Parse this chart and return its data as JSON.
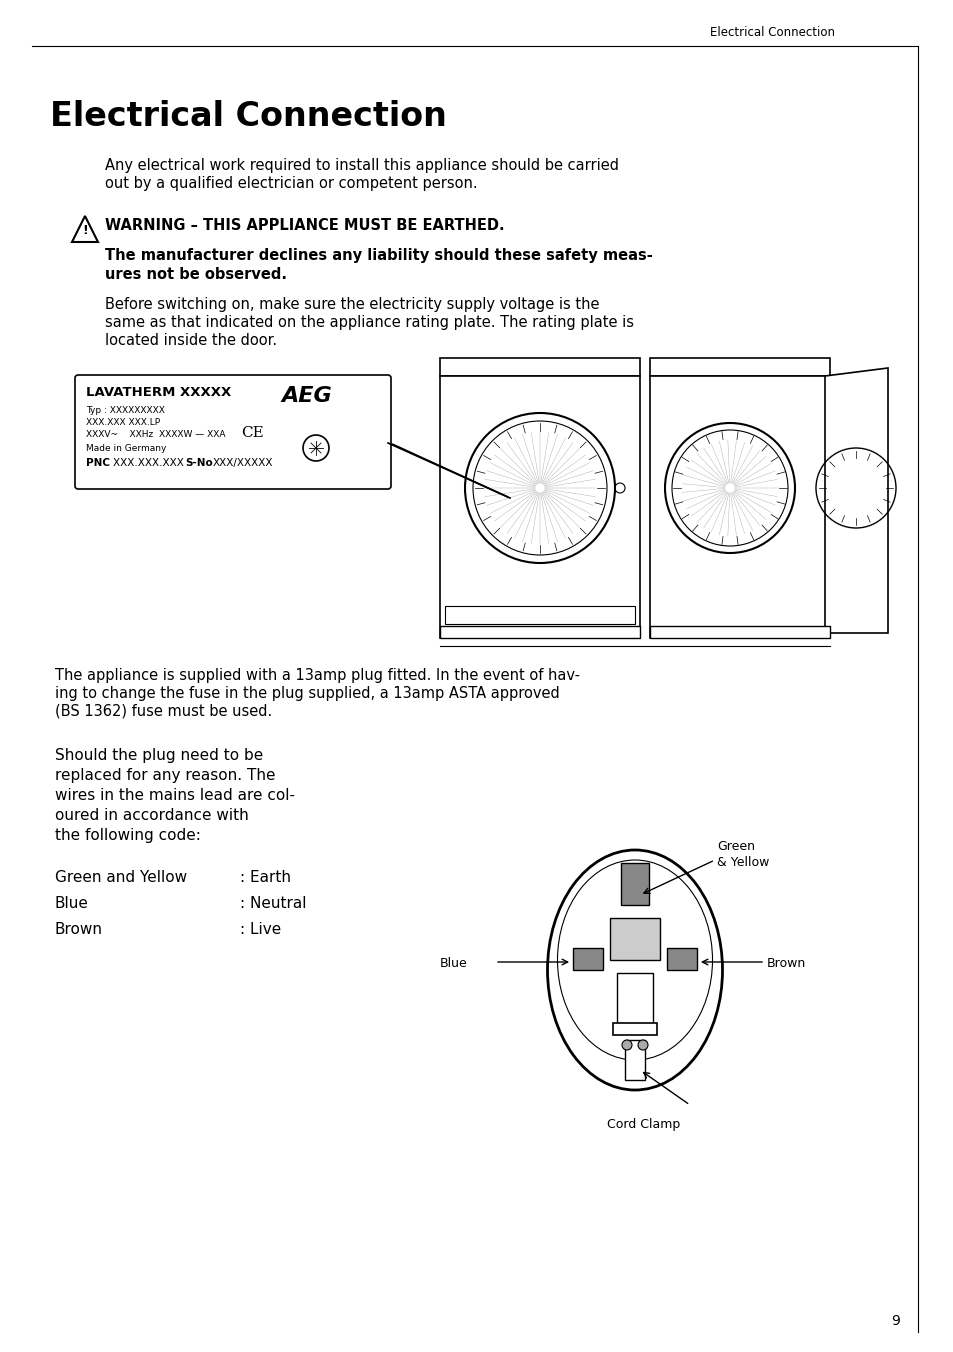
{
  "page_title_header": "Electrical Connection",
  "main_title": "Electrical Connection",
  "body_text_1a": "Any electrical work required to install this appliance should be carried",
  "body_text_1b": "out by a qualified electrician or competent person.",
  "warning_text": "WARNING – THIS APPLIANCE MUST BE EARTHED.",
  "bold_text_1": "The manufacturer declines any liability should these safety meas-",
  "bold_text_2": "ures not be observed.",
  "body_text_2a": "Before switching on, make sure the electricity supply voltage is the",
  "body_text_2b": "same as that indicated on the appliance rating plate. The rating plate is",
  "body_text_2c": "located inside the door.",
  "label_line1": "LAVATHERM XXXXX",
  "label_aeg": "AEG",
  "label_typ": "Typ : XXXXXXXXX",
  "label_xxx": "XXX.XXX XXX.LP",
  "label_voltage": "XXXV~    XXHz  XXXXW — XXA",
  "label_made": "Made in Germany",
  "label_pnc": "PNC XXX.XXX.XXX  S-No XXX/XXXXX",
  "body_text_3a": "The appliance is supplied with a 13amp plug fitted. In the event of hav-",
  "body_text_3b": "ing to change the fuse in the plug supplied, a 13amp ASTA approved",
  "body_text_3c": "(BS 1362) fuse must be used.",
  "plug_left_1": "Should the plug need to be",
  "plug_left_2": "replaced for any reason. The",
  "plug_left_3": "wires in the mains lead are col-",
  "plug_left_4": "oured in accordance with",
  "plug_left_5": "the following code:",
  "wire_1_label": "Green and Yellow",
  "wire_1_desc": ": Earth",
  "wire_2_label": "Blue",
  "wire_2_desc": ": Neutral",
  "wire_3_label": "Brown",
  "wire_3_desc": ": Live",
  "plug_label_green": "Green",
  "plug_label_yellow": "& Yellow",
  "plug_label_blue": "Blue",
  "plug_label_brown": "Brown",
  "plug_label_cord": "Cord Clamp",
  "page_number": "9",
  "bg_color": "#ffffff",
  "text_color": "#000000"
}
